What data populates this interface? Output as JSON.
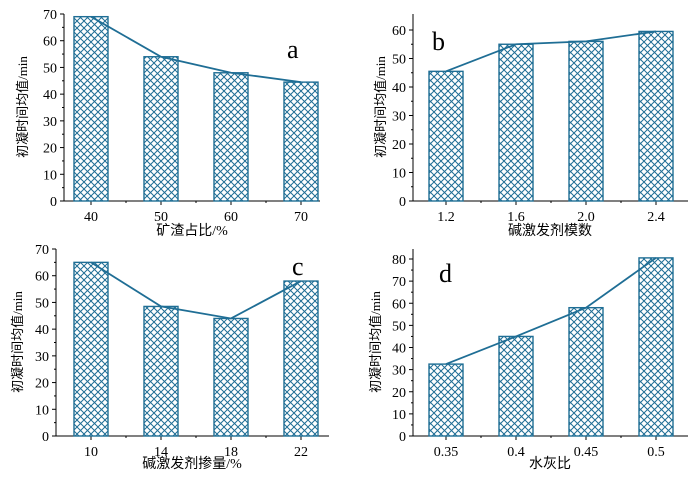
{
  "colors": {
    "bar_stroke": "#1f6e95",
    "line": "#1f6e95",
    "axis": "#000000",
    "background": "#ffffff"
  },
  "chart_data": [
    {
      "type": "bar",
      "panel_label": "a",
      "categories": [
        "40",
        "50",
        "60",
        "70"
      ],
      "values": [
        69,
        54,
        48,
        44.5
      ],
      "line_values": [
        69,
        54,
        48,
        44.5
      ],
      "xlabel": "矿渣占比/%",
      "ylabel": "初凝时间均值/min",
      "ylim": [
        0,
        70
      ],
      "yticks": [
        0,
        10,
        20,
        30,
        40,
        50,
        60,
        70
      ],
      "grid": false,
      "fill": "crosshatch"
    },
    {
      "type": "bar",
      "panel_label": "b",
      "categories": [
        "1.2",
        "1.6",
        "2.0",
        "2.4"
      ],
      "values": [
        45.5,
        55,
        56,
        59.5
      ],
      "line_values": [
        45.5,
        55,
        56,
        59.5
      ],
      "xlabel": "碱激发剂模数",
      "ylabel": "初凝时间均值/min",
      "ylim": [
        0,
        65
      ],
      "yticks": [
        0,
        10,
        20,
        30,
        40,
        50,
        60
      ],
      "grid": false,
      "fill": "crosshatch"
    },
    {
      "type": "bar",
      "panel_label": "c",
      "categories": [
        "10",
        "14",
        "18",
        "22"
      ],
      "values": [
        65,
        48.5,
        44,
        58
      ],
      "line_values": [
        65,
        48.5,
        44,
        58
      ],
      "xlabel": "碱激发剂掺量/%",
      "ylabel": "初凝时间均值/min",
      "ylim": [
        0,
        70
      ],
      "yticks": [
        0,
        10,
        20,
        30,
        40,
        50,
        60,
        70
      ],
      "grid": false,
      "fill": "crosshatch"
    },
    {
      "type": "bar",
      "panel_label": "d",
      "categories": [
        "0.35",
        "0.4",
        "0.45",
        "0.5"
      ],
      "values": [
        32.5,
        45,
        58,
        80.5
      ],
      "line_values": [
        32.5,
        45,
        58,
        80.5
      ],
      "xlabel": "水灰比",
      "ylabel": "初凝时间均值/min",
      "ylim": [
        0,
        85
      ],
      "yticks": [
        0,
        10,
        20,
        30,
        40,
        50,
        60,
        70,
        80
      ],
      "grid": false,
      "fill": "crosshatch"
    }
  ]
}
